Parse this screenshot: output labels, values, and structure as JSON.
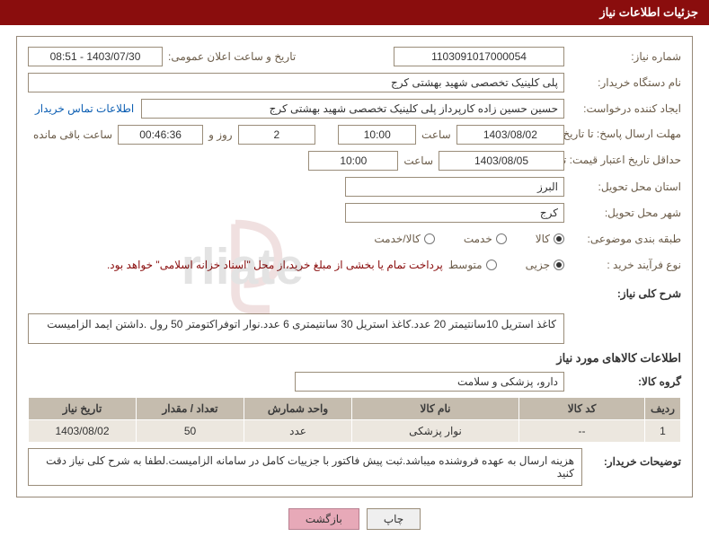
{
  "title": "جزئیات اطلاعات نیاز",
  "labels": {
    "need_no": "شماره نیاز:",
    "announce_dt": "تاریخ و ساعت اعلان عمومی:",
    "buyer_org": "نام دستگاه خریدار:",
    "requester": "ایجاد کننده درخواست:",
    "contact_link": "اطلاعات تماس خریدار",
    "deadline": "مهلت ارسال پاسخ: تا تاریخ:",
    "time_word": "ساعت",
    "days_word": "روز و",
    "remain_word": "ساعت باقی مانده",
    "validity": "حداقل تاریخ اعتبار قیمت: تا تاریخ:",
    "province": "استان محل تحویل:",
    "city": "شهر محل تحویل:",
    "category": "طبقه بندی موضوعی:",
    "process": "نوع فرآیند خرید :",
    "need_desc": "شرح کلی نیاز:",
    "goods_info": "اطلاعات کالاهای مورد نیاز",
    "goods_group": "گروه کالا:",
    "buyer_notes": "توضیحات خریدار:"
  },
  "values": {
    "need_no": "1103091017000054",
    "announce_dt": "1403/07/30 - 08:51",
    "buyer_org": "پلی کلینیک تخصصی شهید بهشتی کرج",
    "requester": "حسین حسین زاده کارپرداز پلی کلینیک تخصصی شهید بهشتی کرج",
    "deadline_date": "1403/08/02",
    "deadline_time": "10:00",
    "deadline_days": "2",
    "deadline_remain": "00:46:36",
    "validity_date": "1403/08/05",
    "validity_time": "10:00",
    "province": "البرز",
    "city": "کرج",
    "need_desc": "کاغذ استریل 10سانتیمتر 20 عدد.کاغذ استریل 30 سانتیمتری 6 عدد.نوار اتوفراکتومتر 50 رول .داشتن ایمد الزامیست",
    "goods_group": "دارو، پزشکی و سلامت",
    "buyer_notes": "هزینه ارسال به عهده فروشنده میباشد.ثبت پیش فاکتور با جزییات کامل در سامانه الزامیست.لطفا به شرح کلی نیاز دقت کنید"
  },
  "radios": {
    "category": {
      "options": [
        "کالا",
        "خدمت",
        "کالا/خدمت"
      ],
      "selected": 0
    },
    "process": {
      "options": [
        "جزیی",
        "متوسط"
      ],
      "selected": 0
    },
    "process_note": "پرداخت تمام یا بخشی از مبلغ خرید،از محل \"اسناد خزانه اسلامی\" خواهد بود."
  },
  "table": {
    "headers": [
      "ردیف",
      "کد کالا",
      "نام کالا",
      "واحد شمارش",
      "تعداد / مقدار",
      "تاریخ نیاز"
    ],
    "widths": [
      "40px",
      "140px",
      "auto",
      "120px",
      "120px",
      "120px"
    ],
    "rows": [
      [
        "1",
        "--",
        "نوار پزشکی",
        "عدد",
        "50",
        "1403/08/02"
      ]
    ]
  },
  "buttons": {
    "print": "چاپ",
    "back": "بازگشت"
  },
  "colors": {
    "header": "#8a0d0d",
    "border": "#968878",
    "th_bg": "#c5bcae",
    "td_bg": "#ece7df",
    "link": "#0d5fb3",
    "back_btn": "#e7a9b8"
  }
}
